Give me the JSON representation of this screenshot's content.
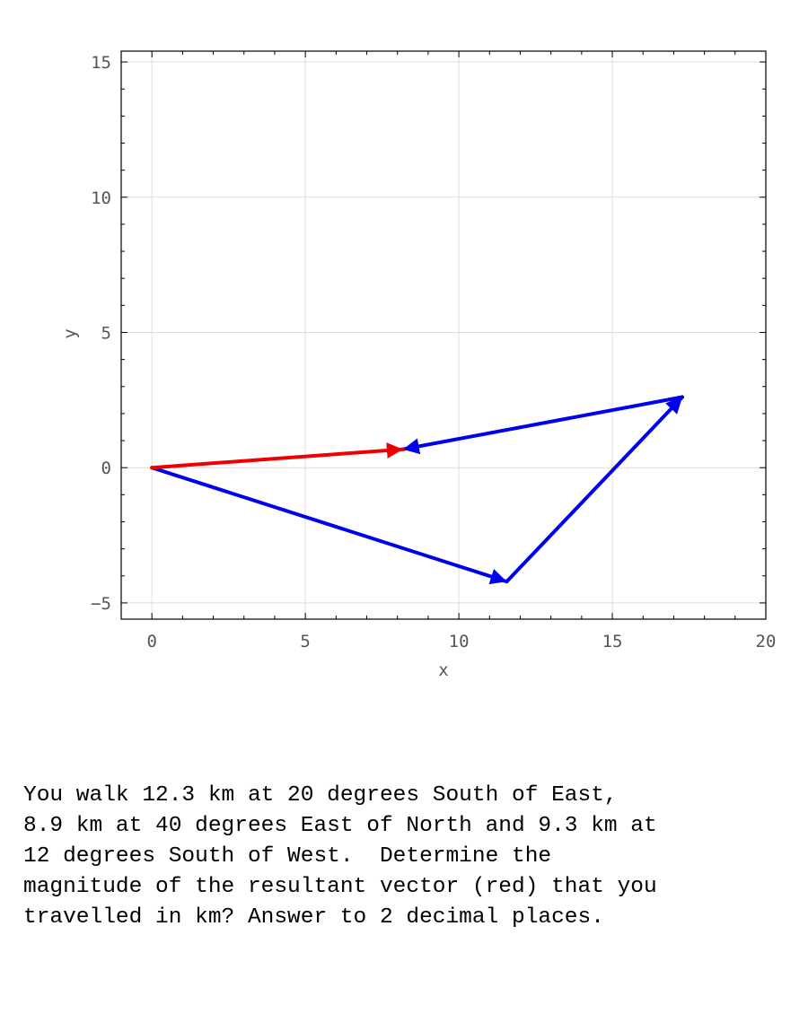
{
  "chart_data": {
    "type": "vector-plot",
    "title": "",
    "xlabel": "x",
    "ylabel": "y",
    "xlim": [
      -1,
      20
    ],
    "ylim": [
      -5.6,
      15.4
    ],
    "xticks": [
      0,
      5,
      10,
      15,
      20
    ],
    "yticks": [
      -5,
      0,
      5,
      10,
      15
    ],
    "xtick_labels": [
      "0",
      "5",
      "10",
      "15",
      "20"
    ],
    "ytick_labels": [
      "−5",
      "0",
      "5",
      "10",
      "15"
    ],
    "grid": true,
    "vectors": [
      {
        "from": [
          0,
          0
        ],
        "to": [
          11.56,
          -4.21
        ],
        "color": "#0000ee"
      },
      {
        "from": [
          11.56,
          -4.21
        ],
        "to": [
          17.28,
          2.61
        ],
        "color": "#0000ee"
      },
      {
        "from": [
          17.28,
          2.61
        ],
        "to": [
          8.18,
          0.68
        ],
        "color": "#0000ee"
      },
      {
        "from": [
          0,
          0
        ],
        "to": [
          8.18,
          0.68
        ],
        "color": "#ee0000"
      }
    ]
  },
  "question": "You walk 12.3 km at 20 degrees South of East,\n8.9 km at 40 degrees East of North and 9.3 km at\n12 degrees South of West.  Determine the\nmagnitude of the resultant vector (red) that you\ntravelled in km? Answer to 2 decimal places."
}
